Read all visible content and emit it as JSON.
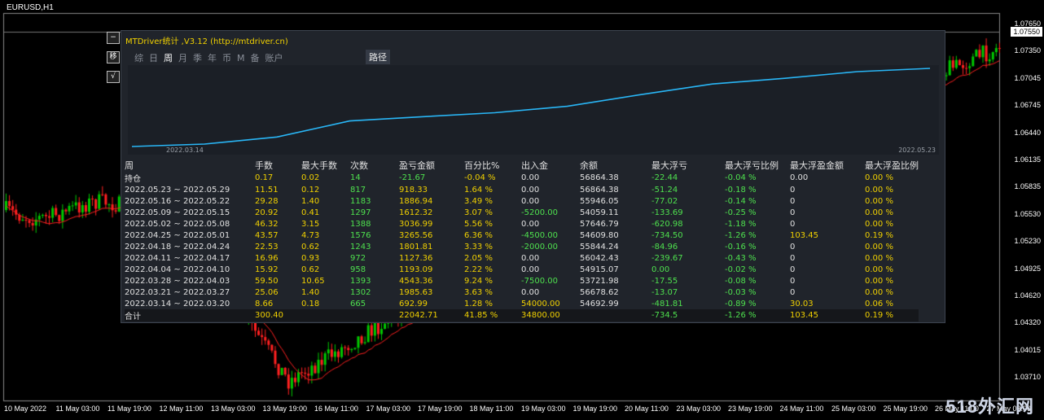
{
  "chart": {
    "symbol": "EURUSD,H1",
    "current_price": "1.07550",
    "price_levels": [
      "1.07650",
      "1.07350",
      "1.07045",
      "1.06745",
      "1.06440",
      "1.06135",
      "1.05835",
      "1.05530",
      "1.05230",
      "1.04925",
      "1.04620",
      "1.04320",
      "1.04015",
      "1.03710"
    ],
    "time_labels": [
      "10 May 2022",
      "11 May 03:00",
      "11 May 19:00",
      "12 May 11:00",
      "13 May 03:00",
      "13 May 19:00",
      "16 May 11:00",
      "17 May 03:00",
      "17 May 19:00",
      "18 May 11:00",
      "19 May 03:00",
      "19 May 19:00",
      "20 May 11:00",
      "23 May 03:00",
      "23 May 19:00",
      "24 May 11:00",
      "25 May 03:00",
      "25 May 19:00",
      "26 May 11:00",
      "27 May 03:00"
    ],
    "watermark": "518外汇网",
    "colors": {
      "up": "#00c800",
      "down": "#ff2020",
      "ma": "#ff2020"
    }
  },
  "side_buttons": [
    {
      "label": "−",
      "icon": "minus-icon"
    },
    {
      "label": "移",
      "icon": "move-icon"
    },
    {
      "label": "√",
      "icon": "check-icon"
    }
  ],
  "panel": {
    "title": "MTDriver统计 ,V3.12 (http://mtdriver.cn)",
    "tabs": [
      "综",
      "日",
      "周",
      "月",
      "季",
      "年",
      "币",
      "M",
      "备",
      "账户"
    ],
    "active_tab": "周",
    "path_button": "路径",
    "curve": {
      "start_date": "2022.03.14",
      "end_date": "2022.05.23",
      "line_color": "#29b6f6",
      "balances": [
        54692.99,
        56678.62,
        53721.98,
        54915.07,
        56042.43,
        55844.24,
        54609.8,
        57646.79,
        54059.11,
        55946.05,
        56864.38
      ]
    },
    "headers": [
      "周",
      "手数",
      "最大手数",
      "次数",
      "盈亏金额",
      "百分比%",
      "出入金",
      "余额",
      "最大浮亏",
      "最大浮亏比例",
      "最大浮盈金额",
      "最大浮盈比例"
    ],
    "holding": [
      "持仓",
      "0.17",
      "0.02",
      "14",
      "-21.67",
      "-0.04 %",
      "0.00",
      "56864.38",
      "-22.44",
      "-0.04 %",
      "0.00",
      "0.00 %"
    ],
    "rows": [
      [
        "2022.05.23 ~ 2022.05.29",
        "11.51",
        "0.12",
        "817",
        "918.33",
        "1.64 %",
        "0.00",
        "56864.38",
        "-51.24",
        "-0.18 %",
        "0",
        "0.00 %"
      ],
      [
        "2022.05.16 ~ 2022.05.22",
        "29.28",
        "1.40",
        "1183",
        "1886.94",
        "3.49 %",
        "0.00",
        "55946.05",
        "-77.02",
        "-0.14 %",
        "0",
        "0.00 %"
      ],
      [
        "2022.05.09 ~ 2022.05.15",
        "20.92",
        "0.41",
        "1297",
        "1612.32",
        "3.07 %",
        "-5200.00",
        "54059.11",
        "-133.69",
        "-0.25 %",
        "0",
        "0.00 %"
      ],
      [
        "2022.05.02 ~ 2022.05.08",
        "46.32",
        "3.15",
        "1388",
        "3036.99",
        "5.56 %",
        "0.00",
        "57646.79",
        "-620.98",
        "-1.18 %",
        "0",
        "0.00 %"
      ],
      [
        "2022.04.25 ~ 2022.05.01",
        "43.57",
        "4.73",
        "1576",
        "3265.56",
        "6.36 %",
        "-4500.00",
        "54609.80",
        "-734.50",
        "-1.26 %",
        "103.45",
        "0.19 %"
      ],
      [
        "2022.04.18 ~ 2022.04.24",
        "22.53",
        "0.62",
        "1243",
        "1801.81",
        "3.33 %",
        "-2000.00",
        "55844.24",
        "-84.96",
        "-0.16 %",
        "0",
        "0.00 %"
      ],
      [
        "2022.04.11 ~ 2022.04.17",
        "16.96",
        "0.93",
        "972",
        "1127.36",
        "2.05 %",
        "0.00",
        "56042.43",
        "-239.67",
        "-0.43 %",
        "0",
        "0.00 %"
      ],
      [
        "2022.04.04 ~ 2022.04.10",
        "15.92",
        "0.62",
        "958",
        "1193.09",
        "2.22 %",
        "0.00",
        "54915.07",
        "0.00",
        "-0.02 %",
        "0",
        "0.00 %"
      ],
      [
        "2022.03.28 ~ 2022.04.03",
        "59.50",
        "10.65",
        "1393",
        "4543.36",
        "9.24 %",
        "-7500.00",
        "53721.98",
        "-17.55",
        "-0.08 %",
        "0",
        "0.00 %"
      ],
      [
        "2022.03.21 ~ 2022.03.27",
        "25.06",
        "1.40",
        "1302",
        "1985.63",
        "3.63 %",
        "0.00",
        "56678.62",
        "-13.07",
        "-0.03 %",
        "0",
        "0.00 %"
      ],
      [
        "2022.03.14 ~ 2022.03.20",
        "8.66",
        "0.18",
        "665",
        "692.99",
        "1.28 %",
        "54000.00",
        "54692.99",
        "-481.81",
        "-0.89 %",
        "30.03",
        "0.06 %"
      ]
    ],
    "total": [
      "合计",
      "300.40",
      "",
      "",
      "22042.71",
      "41.85 %",
      "34800.00",
      "",
      "-734.5",
      "-1.26 %",
      "103.45",
      "0.19 %"
    ]
  }
}
